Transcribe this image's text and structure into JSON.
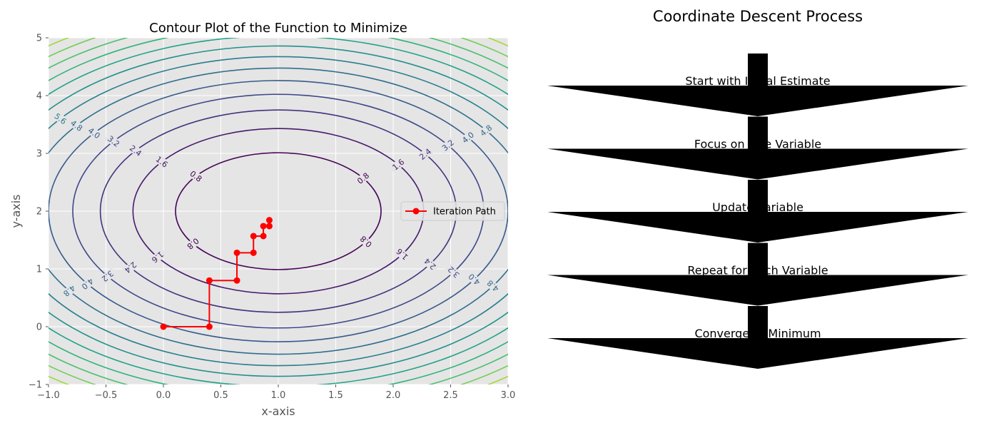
{
  "chart_data": [
    {
      "type": "contour",
      "title": "Contour Plot of the Function to Minimize",
      "xlabel": "x-axis",
      "ylabel": "y-axis",
      "xlim": [
        -1.0,
        3.0
      ],
      "ylim": [
        -1,
        5
      ],
      "xticks": [
        "−1.0",
        "−0.5",
        "0.0",
        "0.5",
        "1.0",
        "1.5",
        "2.0",
        "2.5",
        "3.0"
      ],
      "yticks": [
        "−1",
        "0",
        "1",
        "2",
        "3",
        "4",
        "5"
      ],
      "grid": true,
      "background": "#e5e5e5",
      "colormap": "viridis",
      "center": [
        1,
        2
      ],
      "contour_levels": [
        0.8,
        1.6,
        2.4,
        3.2,
        4.0,
        4.8,
        5.6,
        6.4,
        7.2,
        8.0,
        8.8,
        9.6,
        10.4,
        11.2,
        12.0
      ],
      "path_series": {
        "name": "Iteration Path",
        "color": "#ff0000",
        "x": [
          0.0,
          0.4,
          0.4,
          0.64,
          0.64,
          0.784,
          0.784,
          0.87,
          0.87,
          0.922,
          0.922
        ],
        "y": [
          0.0,
          0.0,
          0.8,
          0.8,
          1.28,
          1.28,
          1.568,
          1.568,
          1.741,
          1.741,
          1.844
        ]
      },
      "legend": {
        "position": "right",
        "entries": [
          "Iteration Path"
        ]
      }
    },
    {
      "type": "flowchart",
      "title": "Coordinate Descent Process",
      "steps": [
        "Start with Initial Estimate",
        "Focus on One Variable",
        "Update Variable",
        "Repeat for Each Variable",
        "Converge to Minimum"
      ]
    }
  ]
}
